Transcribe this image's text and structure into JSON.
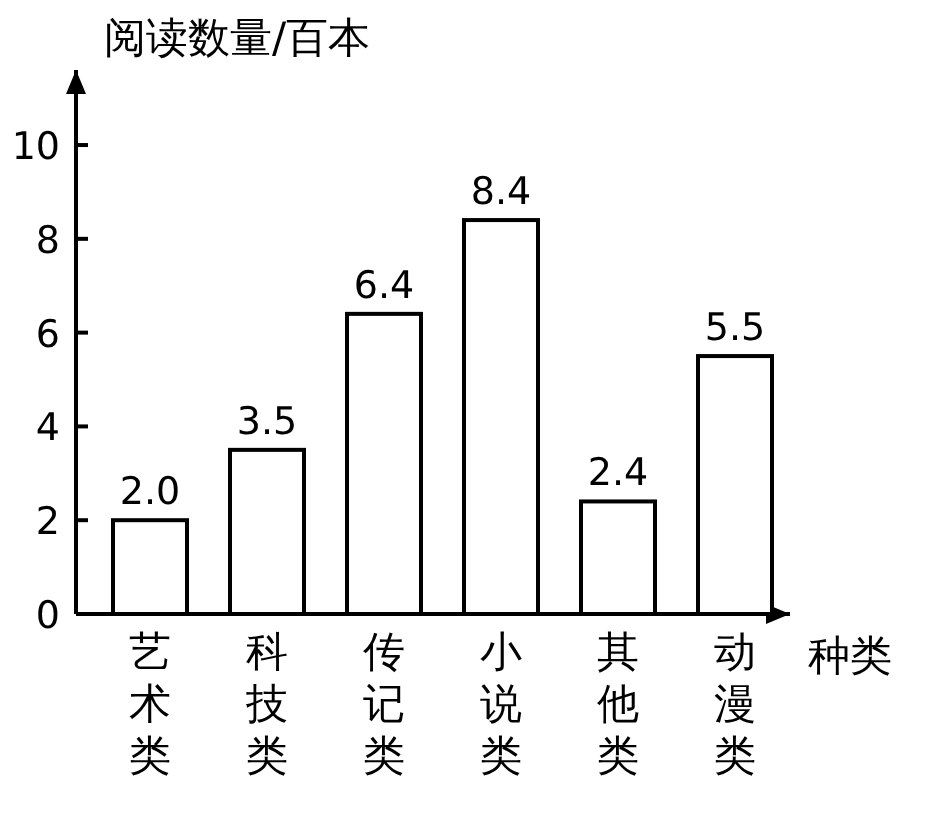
{
  "chart_data": {
    "type": "bar",
    "ylabel": "阅读数量/百本",
    "xlabel": "种类",
    "categories": [
      "艺术类",
      "科技类",
      "传记类",
      "小说类",
      "其他类",
      "动漫类"
    ],
    "values": [
      2.0,
      3.5,
      6.4,
      8.4,
      2.4,
      5.5
    ],
    "value_labels": [
      "2.0",
      "3.5",
      "6.4",
      "8.4",
      "2.4",
      "5.5"
    ],
    "color": "#ffffff",
    "ylim": [
      0,
      11.6
    ],
    "yticks": [
      0,
      2,
      4,
      6,
      8,
      10
    ],
    "grid": false
  }
}
